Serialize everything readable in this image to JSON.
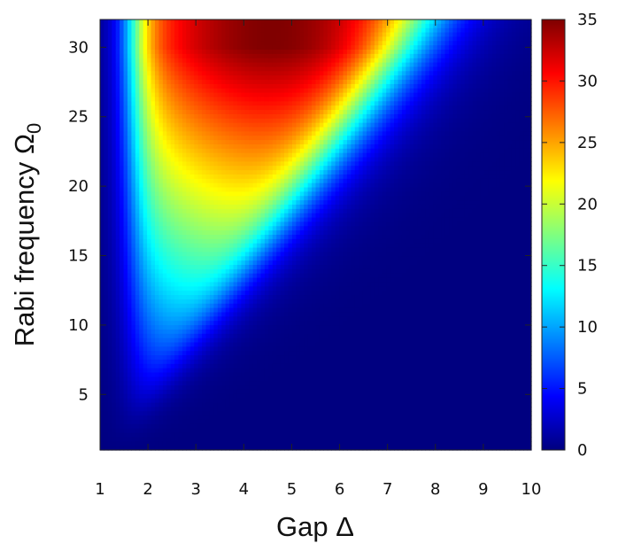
{
  "chart_data": {
    "type": "heatmap",
    "title": "",
    "xlabel": "Gap Δ",
    "ylabel_main": "Rabi frequency Ω",
    "ylabel_sub": "0",
    "xlim": [
      1,
      10
    ],
    "ylim": [
      1,
      32
    ],
    "x_ticks": [
      "1",
      "2",
      "3",
      "4",
      "5",
      "6",
      "7",
      "8",
      "9",
      "10"
    ],
    "y_ticks": [
      "5",
      "10",
      "15",
      "20",
      "25",
      "30"
    ],
    "colorbar": {
      "range": [
        0,
        35
      ],
      "ticks": [
        "0",
        "5",
        "10",
        "15",
        "20",
        "25",
        "30",
        "35"
      ],
      "colormap": "jet"
    },
    "description_samples": {
      "x": [
        1.5,
        2.5,
        3,
        4,
        5,
        6,
        8,
        10
      ],
      "y": [
        2,
        5,
        10,
        13,
        20,
        30
      ],
      "z_notes": "low (~0) at small Ω and large Δ; ridge peaking near 35 at Δ≈4.5, Ω≈32; ridge minimum Ω≈12 near Δ≈2.7"
    }
  }
}
